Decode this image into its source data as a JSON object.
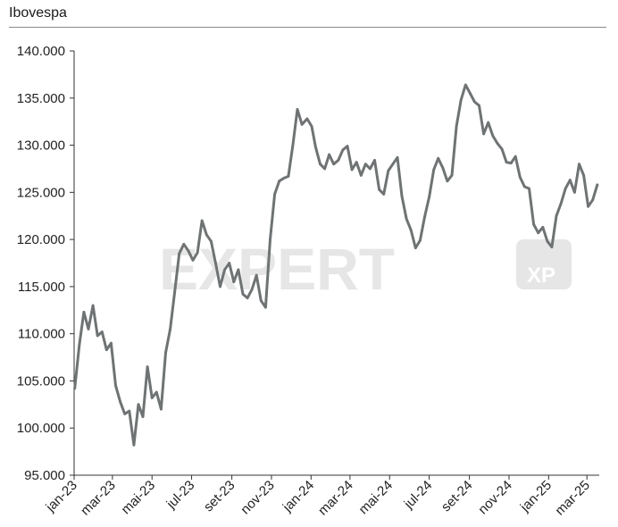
{
  "title": "Ibovespa",
  "watermark": {
    "text": "EXPERT",
    "badge": "XP"
  },
  "colors": {
    "line": "#6f7374",
    "axis": "#333333",
    "title_rule": "#8a8a8a",
    "watermark": "#e6e6e6"
  },
  "chart_data": {
    "type": "line",
    "title": "Ibovespa",
    "xlabel": "",
    "ylabel": "",
    "ylim": [
      95000,
      140000
    ],
    "y_ticks": [
      95000,
      100000,
      105000,
      110000,
      115000,
      120000,
      125000,
      130000,
      135000,
      140000
    ],
    "y_tick_labels": [
      "95.000",
      "100.000",
      "105.000",
      "110.000",
      "115.000",
      "120.000",
      "125.000",
      "130.000",
      "135.000",
      "140.000"
    ],
    "x_tick_labels": [
      "jan-23",
      "mar-23",
      "mai-23",
      "jul-23",
      "set-23",
      "nov-23",
      "jan-24",
      "mar-24",
      "mai-24",
      "jul-24",
      "set-24",
      "nov-24",
      "jan-25",
      "mar-25"
    ],
    "x_ticks": [
      "2023-01-01",
      "2023-03-01",
      "2023-05-01",
      "2023-07-01",
      "2023-09-01",
      "2023-11-01",
      "2024-01-01",
      "2024-03-01",
      "2024-05-01",
      "2024-07-01",
      "2024-09-01",
      "2024-11-01",
      "2025-01-01",
      "2025-03-01"
    ],
    "xlim": [
      "2023-01-01",
      "2025-03-20"
    ],
    "grid": false,
    "series": [
      {
        "x": [
          "2023-01-02",
          "2023-01-09",
          "2023-01-16",
          "2023-01-23",
          "2023-01-30",
          "2023-02-06",
          "2023-02-13",
          "2023-02-20",
          "2023-02-27",
          "2023-03-06",
          "2023-03-13",
          "2023-03-20",
          "2023-03-27",
          "2023-04-03",
          "2023-04-10",
          "2023-04-17",
          "2023-04-24",
          "2023-05-01",
          "2023-05-08",
          "2023-05-15",
          "2023-05-22",
          "2023-05-29",
          "2023-06-05",
          "2023-06-12",
          "2023-06-19",
          "2023-06-26",
          "2023-07-03",
          "2023-07-10",
          "2023-07-17",
          "2023-07-24",
          "2023-07-31",
          "2023-08-07",
          "2023-08-14",
          "2023-08-21",
          "2023-08-28",
          "2023-09-04",
          "2023-09-11",
          "2023-09-18",
          "2023-09-25",
          "2023-10-02",
          "2023-10-09",
          "2023-10-16",
          "2023-10-23",
          "2023-10-30",
          "2023-11-06",
          "2023-11-13",
          "2023-11-20",
          "2023-11-27",
          "2023-12-04",
          "2023-12-11",
          "2023-12-18",
          "2023-12-26",
          "2024-01-02",
          "2024-01-08",
          "2024-01-15",
          "2024-01-22",
          "2024-01-29",
          "2024-02-05",
          "2024-02-12",
          "2024-02-19",
          "2024-02-26",
          "2024-03-04",
          "2024-03-11",
          "2024-03-18",
          "2024-03-25",
          "2024-04-01",
          "2024-04-08",
          "2024-04-15",
          "2024-04-22",
          "2024-04-29",
          "2024-05-06",
          "2024-05-13",
          "2024-05-20",
          "2024-05-27",
          "2024-06-03",
          "2024-06-10",
          "2024-06-17",
          "2024-06-24",
          "2024-07-01",
          "2024-07-08",
          "2024-07-15",
          "2024-07-22",
          "2024-07-29",
          "2024-08-05",
          "2024-08-12",
          "2024-08-19",
          "2024-08-26",
          "2024-09-02",
          "2024-09-09",
          "2024-09-16",
          "2024-09-23",
          "2024-09-30",
          "2024-10-07",
          "2024-10-14",
          "2024-10-21",
          "2024-10-28",
          "2024-11-04",
          "2024-11-11",
          "2024-11-18",
          "2024-11-25",
          "2024-12-02",
          "2024-12-09",
          "2024-12-16",
          "2024-12-23",
          "2024-12-30",
          "2025-01-06",
          "2025-01-13",
          "2025-01-20",
          "2025-01-27",
          "2025-02-03",
          "2025-02-10",
          "2025-02-17",
          "2025-02-24",
          "2025-03-03",
          "2025-03-10",
          "2025-03-17"
        ],
        "values": [
          104200,
          108800,
          112300,
          110500,
          113000,
          109800,
          110200,
          108300,
          109000,
          104500,
          102800,
          101500,
          101800,
          98200,
          102500,
          101200,
          106500,
          103200,
          103800,
          102000,
          108000,
          110500,
          114500,
          118500,
          119500,
          118800,
          117800,
          118600,
          122000,
          120500,
          119800,
          117500,
          115000,
          116800,
          117500,
          115500,
          116800,
          114200,
          113800,
          114700,
          116200,
          113500,
          112800,
          120000,
          124800,
          126200,
          126500,
          126700,
          130000,
          133800,
          132200,
          132800,
          132000,
          129800,
          128000,
          127500,
          129000,
          128000,
          128400,
          129500,
          129900,
          127400,
          128200,
          126800,
          128000,
          127500,
          128400,
          125300,
          124800,
          127300,
          128000,
          128700,
          124600,
          122200,
          121000,
          119100,
          119900,
          122400,
          124500,
          127400,
          128600,
          127600,
          126200,
          126800,
          132000,
          134800,
          136400,
          135500,
          134600,
          134200,
          131200,
          132400,
          131000,
          130200,
          129600,
          128200,
          128100,
          128800,
          126600,
          125600,
          125400,
          121600,
          120700,
          121300,
          119800,
          119200,
          122500,
          123800,
          125400,
          126300,
          125000,
          128000,
          126800,
          123500,
          124200,
          125800
        ]
      }
    ]
  }
}
